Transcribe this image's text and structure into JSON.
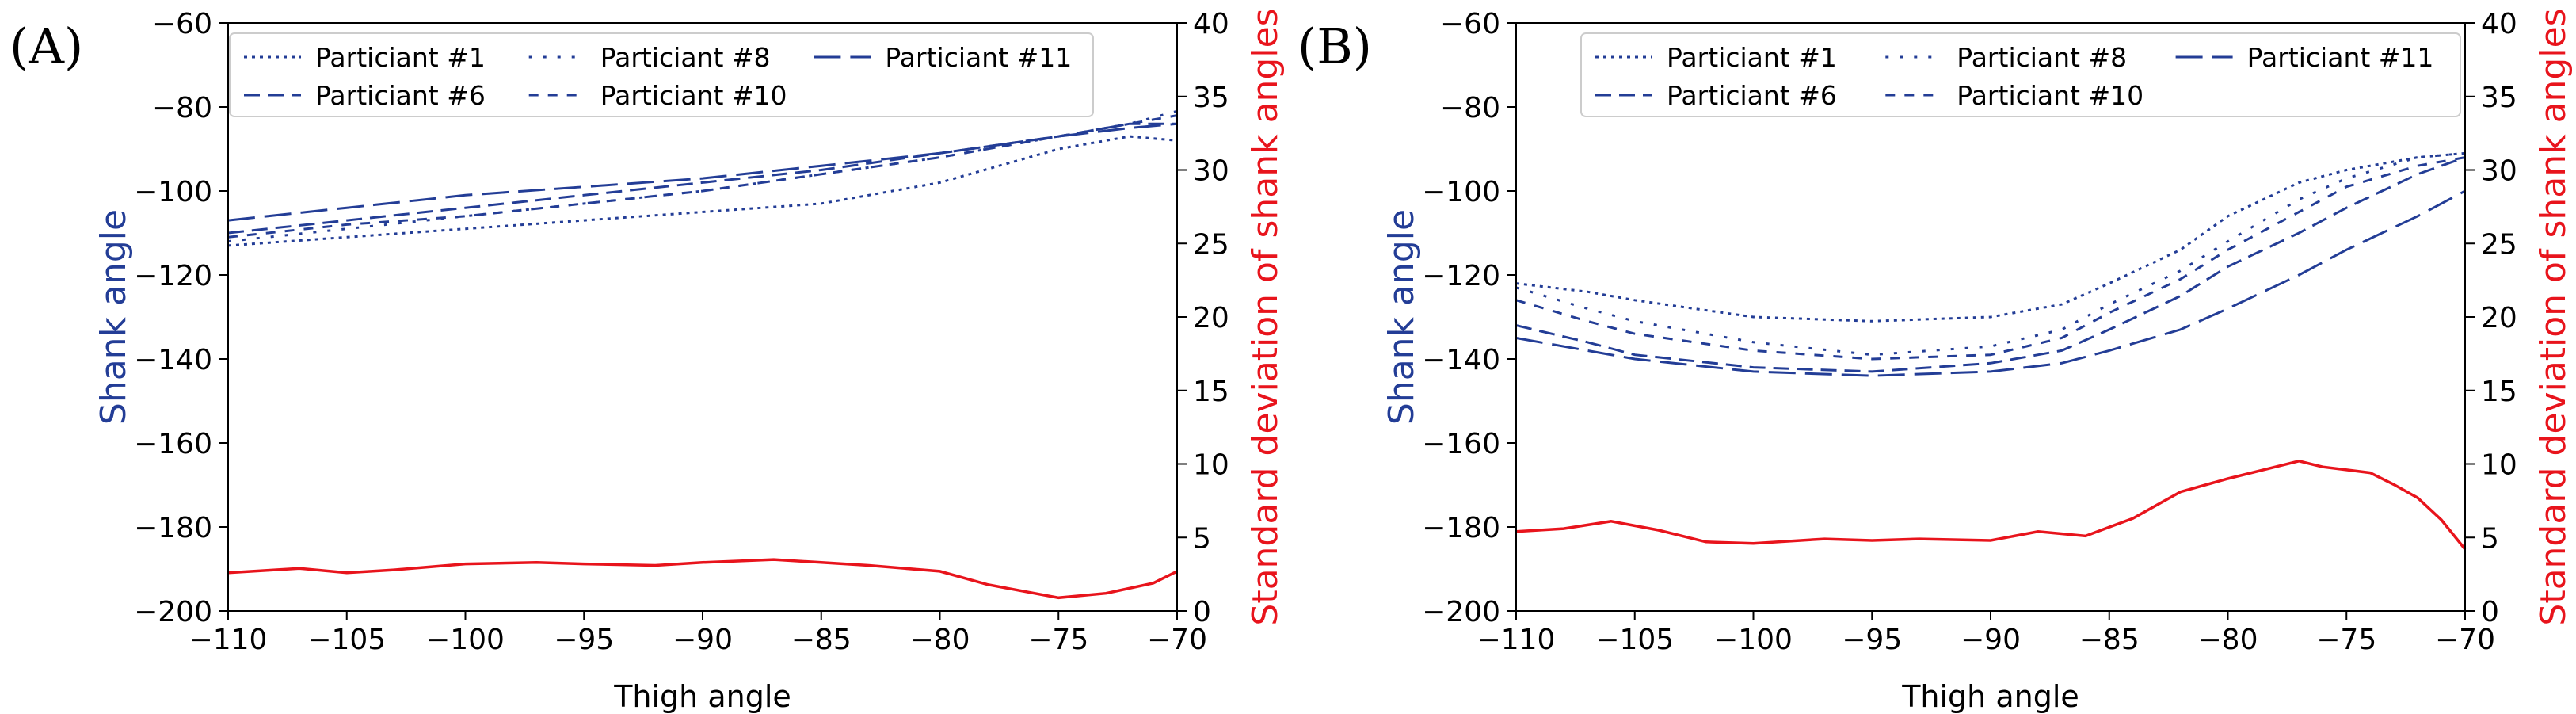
{
  "chart_data": [
    {
      "type": "line",
      "panel_label": "(A)",
      "xlabel": "Thigh angle",
      "ylabel_left": "Shank angle",
      "ylabel_right": "Standard deviation of shank angles",
      "xlim": [
        -110,
        -70
      ],
      "ylim_left": [
        -200,
        -60
      ],
      "ylim_right": [
        0,
        40
      ],
      "xticks": [
        -110,
        -105,
        -100,
        -95,
        -90,
        -85,
        -80,
        -75,
        -70
      ],
      "yticks_left": [
        -200,
        -180,
        -160,
        -140,
        -120,
        -100,
        -80,
        -60
      ],
      "yticks_right": [
        0,
        5,
        10,
        15,
        20,
        25,
        30,
        35,
        40
      ],
      "legend_position": "top",
      "series": [
        {
          "name": "Particiant #1",
          "style": "dotted",
          "axis": "left",
          "color": "#233d96",
          "x": [
            -110,
            -105,
            -100,
            -95,
            -90,
            -85,
            -80,
            -75,
            -72,
            -70
          ],
          "y": [
            -113,
            -111,
            -109,
            -107,
            -105,
            -103,
            -98,
            -90,
            -87,
            -88
          ]
        },
        {
          "name": "Particiant #6",
          "style": "dashed",
          "axis": "left",
          "color": "#233d96",
          "x": [
            -110,
            -105,
            -100,
            -95,
            -90,
            -85,
            -80,
            -75,
            -72,
            -70
          ],
          "y": [
            -110,
            -107,
            -104,
            -101,
            -98,
            -95,
            -91,
            -87,
            -84,
            -84
          ]
        },
        {
          "name": "Particiant #8",
          "style": "loose-dotted",
          "axis": "left",
          "color": "#233d96",
          "x": [
            -110,
            -105,
            -100,
            -95,
            -90,
            -85,
            -80,
            -75,
            -72,
            -70
          ],
          "y": [
            -112,
            -109,
            -106,
            -103,
            -100,
            -96,
            -92,
            -87,
            -84,
            -81
          ]
        },
        {
          "name": "Particiant #10",
          "style": "short-dashed",
          "axis": "left",
          "color": "#233d96",
          "x": [
            -110,
            -105,
            -100,
            -95,
            -90,
            -85,
            -80,
            -75,
            -72,
            -70
          ],
          "y": [
            -111,
            -108,
            -106,
            -103,
            -100,
            -96,
            -92,
            -87,
            -84,
            -82
          ]
        },
        {
          "name": "Particiant #11",
          "style": "long-dashed",
          "axis": "left",
          "color": "#233d96",
          "x": [
            -110,
            -105,
            -100,
            -95,
            -90,
            -85,
            -80,
            -75,
            -72,
            -70
          ],
          "y": [
            -107,
            -104,
            -101,
            -99,
            -97,
            -94,
            -91,
            -87,
            -85,
            -84
          ]
        },
        {
          "name": "Standard deviation",
          "style": "solid",
          "axis": "right",
          "color": "#e8141c",
          "x": [
            -110,
            -107,
            -105,
            -103,
            -100,
            -97,
            -95,
            -92,
            -90,
            -87,
            -85,
            -83,
            -80,
            -78,
            -75,
            -73,
            -71,
            -70
          ],
          "y": [
            2.6,
            2.9,
            2.6,
            2.8,
            3.2,
            3.3,
            3.2,
            3.1,
            3.3,
            3.5,
            3.3,
            3.1,
            2.7,
            1.8,
            0.9,
            1.2,
            1.9,
            2.7
          ]
        }
      ]
    },
    {
      "type": "line",
      "panel_label": "(B)",
      "xlabel": "Thigh angle",
      "ylabel_left": "Shank angle",
      "ylabel_right": "Standard deviation of shank angles",
      "xlim": [
        -110,
        -70
      ],
      "ylim_left": [
        -200,
        -60
      ],
      "ylim_right": [
        0,
        40
      ],
      "xticks": [
        -110,
        -105,
        -100,
        -95,
        -90,
        -85,
        -80,
        -75,
        -70
      ],
      "yticks_left": [
        -200,
        -180,
        -160,
        -140,
        -120,
        -100,
        -80,
        -60
      ],
      "yticks_right": [
        0,
        5,
        10,
        15,
        20,
        25,
        30,
        35,
        40
      ],
      "legend_position": "top-right",
      "series": [
        {
          "name": "Particiant #1",
          "style": "dotted",
          "axis": "left",
          "color": "#233d96",
          "x": [
            -110,
            -107,
            -105,
            -100,
            -95,
            -90,
            -87,
            -85,
            -82,
            -80,
            -77,
            -75,
            -72,
            -70
          ],
          "y": [
            -122,
            -124,
            -126,
            -130,
            -131,
            -130,
            -127,
            -122,
            -114,
            -106,
            -98,
            -95,
            -92,
            -91
          ]
        },
        {
          "name": "Particiant #6",
          "style": "dashed",
          "axis": "left",
          "color": "#233d96",
          "x": [
            -110,
            -107,
            -105,
            -100,
            -95,
            -90,
            -87,
            -85,
            -82,
            -80,
            -77,
            -75,
            -72,
            -70
          ],
          "y": [
            -132,
            -136,
            -139,
            -142,
            -143,
            -141,
            -138,
            -133,
            -125,
            -118,
            -110,
            -104,
            -96,
            -92
          ]
        },
        {
          "name": "Particiant #8",
          "style": "loose-dotted",
          "axis": "left",
          "color": "#233d96",
          "x": [
            -110,
            -107,
            -105,
            -100,
            -95,
            -90,
            -87,
            -85,
            -82,
            -80,
            -77,
            -75,
            -72,
            -70
          ],
          "y": [
            -123,
            -128,
            -131,
            -136,
            -139,
            -137,
            -133,
            -127,
            -119,
            -112,
            -102,
            -97,
            -92,
            -91
          ]
        },
        {
          "name": "Particiant #10",
          "style": "short-dashed",
          "axis": "left",
          "color": "#233d96",
          "x": [
            -110,
            -107,
            -105,
            -100,
            -95,
            -90,
            -87,
            -85,
            -82,
            -80,
            -77,
            -75,
            -72,
            -70
          ],
          "y": [
            -126,
            -131,
            -134,
            -138,
            -140,
            -139,
            -135,
            -129,
            -121,
            -114,
            -105,
            -99,
            -94,
            -92
          ]
        },
        {
          "name": "Particiant #11",
          "style": "long-dashed",
          "axis": "left",
          "color": "#233d96",
          "x": [
            -110,
            -107,
            -105,
            -100,
            -95,
            -90,
            -87,
            -85,
            -82,
            -80,
            -77,
            -75,
            -72,
            -70
          ],
          "y": [
            -135,
            -138,
            -140,
            -143,
            -144,
            -143,
            -141,
            -138,
            -133,
            -128,
            -120,
            -114,
            -106,
            -100
          ]
        },
        {
          "name": "Standard deviation",
          "style": "solid",
          "axis": "right",
          "color": "#e8141c",
          "x": [
            -110,
            -108,
            -106,
            -104,
            -102,
            -100,
            -97,
            -95,
            -93,
            -90,
            -88,
            -86,
            -84,
            -82,
            -80,
            -78,
            -77,
            -76,
            -75,
            -74,
            -73,
            -72,
            -71,
            -70
          ],
          "y": [
            5.4,
            5.6,
            6.1,
            5.5,
            4.7,
            4.6,
            4.9,
            4.8,
            4.9,
            4.8,
            5.4,
            5.1,
            6.3,
            8.1,
            9.0,
            9.8,
            10.2,
            9.8,
            9.6,
            9.4,
            8.6,
            7.7,
            6.2,
            4.2
          ]
        }
      ]
    }
  ]
}
